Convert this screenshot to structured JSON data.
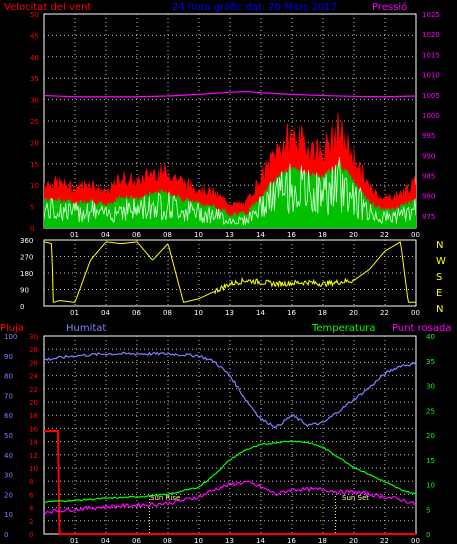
{
  "header": {
    "title": "24 hora gràfic dat:  20 Març 2017",
    "wind_label": "Velocitat del vent",
    "pressure_label": "Pressió"
  },
  "compass": [
    "N",
    "W",
    "S",
    "E",
    "N"
  ],
  "middle_header": {
    "rain_label": "Pluja",
    "humidity_label": "Humitat",
    "temperature_label": "Temperatura",
    "dewpoint_label": "Punt rosada"
  },
  "sun": {
    "rise_label": "Sun Rise",
    "set_label": "Sun Set"
  },
  "colors": {
    "background": "#000000",
    "frame": "#ffffff",
    "grid": "#c0c0c0",
    "wind_gust": "#ff0000",
    "wind_avg": "#00c000",
    "wind_speed": "#e0ffe0",
    "pressure": "#ff00ff",
    "direction": "#ffff00",
    "rain": "#ff0000",
    "humidity": "#7f7fff",
    "temperature": "#00ff00",
    "dewpoint": "#ff00ff",
    "title": "#0000ff"
  },
  "chart_data": [
    {
      "type": "line",
      "x_ticks": [
        "01",
        "04",
        "06",
        "08",
        "10",
        "13",
        "14",
        "16",
        "18",
        "20",
        "22",
        "00"
      ],
      "y_left": {
        "label": "Velocitat del vent",
        "ticks": [
          0,
          5,
          10,
          15,
          20,
          25,
          30,
          35,
          40,
          45,
          50
        ],
        "range": [
          0,
          50
        ]
      },
      "y_right": {
        "label": "Pressió",
        "ticks": [
          975,
          980,
          985,
          990,
          995,
          1000,
          1005,
          1010,
          1015,
          1020,
          1025
        ],
        "range": [
          972,
          1025
        ]
      },
      "grid": true,
      "series": [
        {
          "name": "Velocitat del vent",
          "axis": "left",
          "x": [
            0,
            1,
            2,
            3,
            4,
            5,
            6,
            7,
            8,
            9,
            10,
            11,
            12,
            13,
            14,
            15,
            16,
            17,
            18,
            19,
            20,
            21,
            22,
            23,
            24
          ],
          "values": [
            7,
            7,
            6,
            7,
            5,
            8,
            7,
            9,
            9,
            7,
            6,
            5,
            3,
            3,
            8,
            13,
            16,
            14,
            13,
            17,
            12,
            6,
            4,
            5,
            7
          ]
        },
        {
          "name": "Pressió",
          "axis": "right",
          "x": [
            0,
            2,
            4,
            6,
            8,
            10,
            12,
            13,
            14,
            16,
            18,
            20,
            22,
            24
          ],
          "values": [
            1004.8,
            1004.5,
            1004.5,
            1004.5,
            1004.7,
            1005.1,
            1005.6,
            1005.8,
            1005.5,
            1005.1,
            1004.8,
            1004.6,
            1004.5,
            1004.7
          ]
        }
      ]
    },
    {
      "type": "line",
      "x_ticks": [
        "01",
        "04",
        "06",
        "08",
        "10",
        "13",
        "14",
        "16",
        "18",
        "20",
        "22",
        "00"
      ],
      "y_left": {
        "ticks": [
          0,
          90,
          180,
          270,
          360
        ],
        "range": [
          0,
          360
        ]
      },
      "grid": true,
      "series": [
        {
          "name": "",
          "x": [
            0,
            0.5,
            0.6,
            1,
            2,
            3,
            4,
            5,
            6,
            7,
            8,
            9,
            10,
            11,
            12,
            13,
            14,
            15,
            16,
            17,
            18,
            19,
            20,
            21,
            22,
            23,
            23.5,
            24
          ],
          "values": [
            350,
            340,
            20,
            30,
            20,
            250,
            350,
            340,
            350,
            250,
            340,
            20,
            40,
            80,
            120,
            140,
            130,
            120,
            125,
            130,
            120,
            130,
            140,
            200,
            300,
            350,
            20,
            20
          ]
        }
      ]
    },
    {
      "type": "line",
      "x_ticks": [
        "01",
        "04",
        "06",
        "08",
        "10",
        "13",
        "14",
        "16",
        "18",
        "20",
        "22",
        "00"
      ],
      "y_axes": [
        {
          "label": "Humitat",
          "ticks": [
            0,
            10,
            20,
            30,
            40,
            50,
            60,
            70,
            80,
            90,
            100
          ],
          "range": [
            0,
            100
          ]
        },
        {
          "label": "Pluja",
          "ticks": [
            0,
            2,
            4,
            6,
            8,
            10,
            12,
            14,
            16,
            18,
            20,
            22,
            24,
            26,
            28,
            30
          ],
          "range": [
            0,
            30
          ]
        },
        {
          "label": "Temperatura",
          "ticks": [
            0,
            5,
            10,
            15,
            20,
            25,
            30,
            35,
            40
          ],
          "range": [
            0,
            40
          ]
        }
      ],
      "sun_rise_hour": 6.8,
      "sun_set_hour": 18.8,
      "grid": true,
      "series": [
        {
          "name": "Humitat",
          "axis": "Humitat",
          "x": [
            0,
            2,
            4,
            6,
            8,
            10,
            11,
            12,
            13,
            14,
            15,
            16,
            17,
            18,
            19,
            20,
            21,
            22,
            23,
            24
          ],
          "values": [
            88,
            90,
            91,
            91,
            91,
            90,
            87,
            80,
            68,
            58,
            54,
            60,
            55,
            56,
            62,
            68,
            74,
            81,
            85,
            86
          ]
        },
        {
          "name": "Pluja",
          "axis": "Pluja",
          "x": [
            0,
            0.9,
            1,
            24
          ],
          "values": [
            15.6,
            15.6,
            0,
            0
          ]
        },
        {
          "name": "Temperatura",
          "axis": "Temperatura",
          "x": [
            0,
            2,
            4,
            6,
            8,
            10,
            11,
            12,
            13,
            14,
            15,
            16,
            17,
            18,
            19,
            20,
            21,
            22,
            23,
            24
          ],
          "values": [
            6.5,
            6.8,
            7.2,
            7.5,
            8,
            9.5,
            12,
            15,
            17,
            18,
            18.5,
            18.8,
            18.5,
            17.5,
            15.5,
            13.5,
            12,
            10.5,
            9,
            8
          ]
        },
        {
          "name": "Punt rosada",
          "axis": "Temperatura",
          "x": [
            0,
            2,
            4,
            6,
            8,
            10,
            11,
            12,
            13,
            14,
            15,
            16,
            17,
            18,
            19,
            20,
            21,
            22,
            23,
            24
          ],
          "values": [
            4.5,
            5,
            5.5,
            5.8,
            6.2,
            7.5,
            9,
            10,
            10.5,
            9.5,
            8,
            9,
            9,
            9,
            8.5,
            8.5,
            8,
            7.5,
            7,
            6
          ]
        }
      ]
    }
  ]
}
